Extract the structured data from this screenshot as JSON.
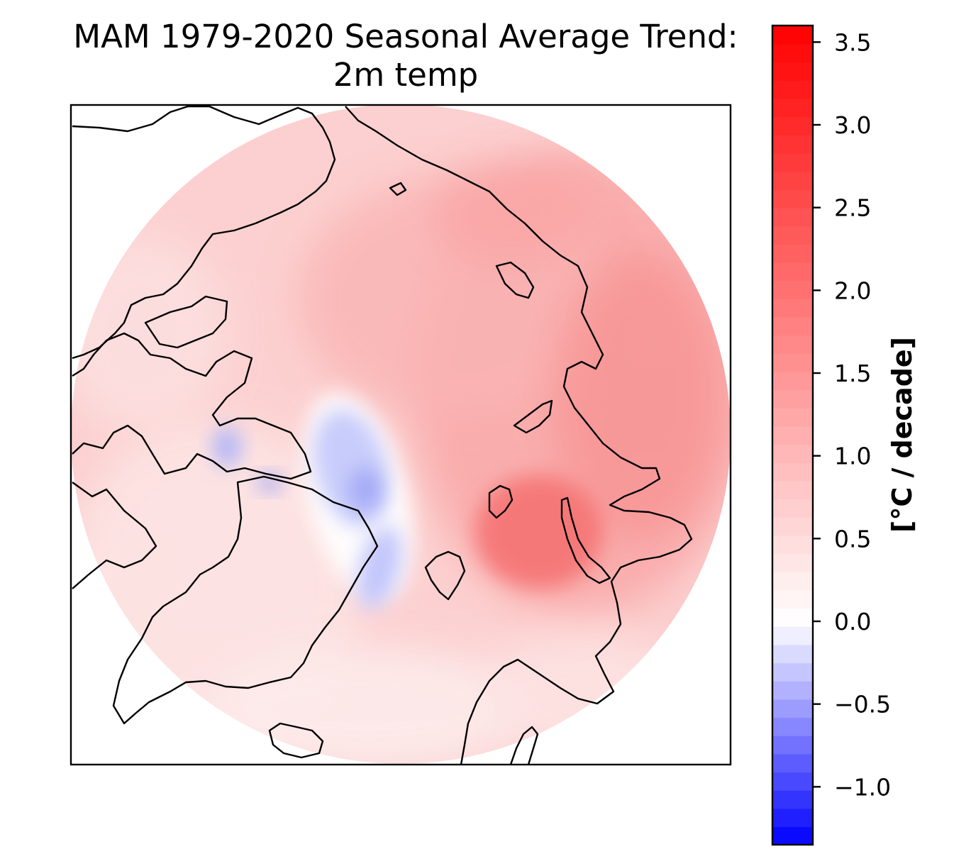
{
  "title": {
    "line1": "MAM 1979-2020 Seasonal Average Trend:",
    "line2": "2m temp"
  },
  "map": {
    "projection": "north-polar-stereographic",
    "region": "Arctic",
    "coastline_color": "#000000",
    "features": [
      "Greenland",
      "Canadian Arctic Archipelago",
      "Svalbard",
      "Novaya Zemlya",
      "Iceland",
      "Siberia",
      "Alaska",
      "Scandinavia"
    ],
    "field": "2m temperature trend",
    "season": "MAM",
    "period": "1979-2020"
  },
  "colorbar": {
    "label": "[°C / decade]",
    "min": -1.35,
    "max": 3.6,
    "ticks": [
      {
        "value": -1.0,
        "label": "−1.0"
      },
      {
        "value": -0.5,
        "label": "−0.5"
      },
      {
        "value": 0.0,
        "label": "0.0"
      },
      {
        "value": 0.5,
        "label": "0.5"
      },
      {
        "value": 1.0,
        "label": "1.0"
      },
      {
        "value": 1.5,
        "label": "1.5"
      },
      {
        "value": 2.0,
        "label": "2.0"
      },
      {
        "value": 2.5,
        "label": "2.5"
      },
      {
        "value": 3.0,
        "label": "3.0"
      },
      {
        "value": 3.5,
        "label": "3.5"
      }
    ],
    "color_low": "#0000ff",
    "color_mid": "#ffffff",
    "color_high": "#ff0000",
    "levels": 45
  }
}
